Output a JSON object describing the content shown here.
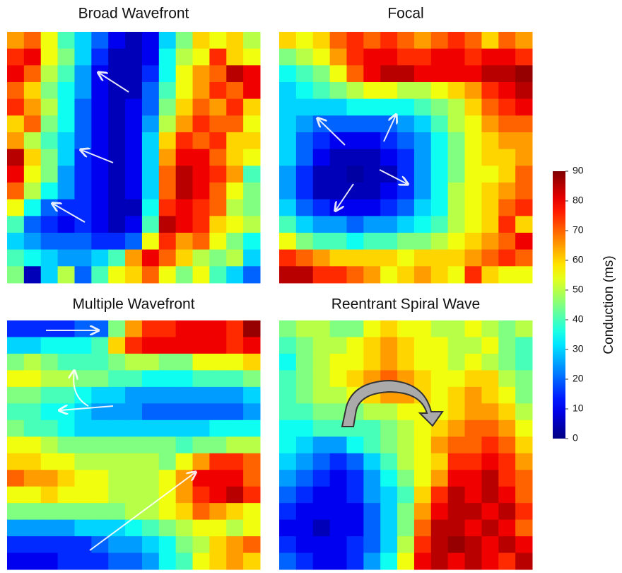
{
  "chart_data": [
    {
      "type": "heatmap",
      "title": "Broad Wavefront",
      "values": [
        [
          65,
          70,
          55,
          40,
          30,
          20,
          10,
          5,
          10,
          30,
          45,
          60,
          55,
          60,
          50
        ],
        [
          75,
          80,
          55,
          45,
          30,
          15,
          5,
          5,
          10,
          35,
          50,
          55,
          75,
          60,
          55
        ],
        [
          80,
          70,
          50,
          40,
          25,
          10,
          5,
          5,
          15,
          35,
          55,
          65,
          70,
          85,
          80
        ],
        [
          70,
          60,
          45,
          35,
          25,
          10,
          5,
          5,
          20,
          40,
          55,
          65,
          75,
          70,
          80
        ],
        [
          75,
          65,
          50,
          35,
          20,
          10,
          5,
          10,
          20,
          45,
          60,
          70,
          65,
          75,
          60
        ],
        [
          60,
          70,
          45,
          35,
          20,
          10,
          5,
          10,
          25,
          50,
          65,
          75,
          70,
          70,
          55
        ],
        [
          65,
          50,
          40,
          30,
          20,
          10,
          5,
          10,
          30,
          60,
          75,
          70,
          75,
          60,
          60
        ],
        [
          85,
          60,
          45,
          30,
          15,
          10,
          5,
          10,
          30,
          65,
          80,
          80,
          70,
          60,
          55
        ],
        [
          80,
          55,
          45,
          25,
          15,
          10,
          5,
          10,
          30,
          70,
          85,
          80,
          75,
          65,
          40
        ],
        [
          70,
          50,
          35,
          25,
          15,
          10,
          5,
          10,
          30,
          70,
          85,
          80,
          70,
          55,
          45
        ],
        [
          55,
          35,
          20,
          15,
          15,
          10,
          5,
          5,
          35,
          75,
          80,
          75,
          70,
          50,
          45
        ],
        [
          40,
          20,
          15,
          10,
          15,
          10,
          5,
          10,
          40,
          85,
          80,
          75,
          60,
          55,
          50
        ],
        [
          30,
          25,
          20,
          20,
          20,
          15,
          15,
          20,
          55,
          75,
          65,
          70,
          55,
          45,
          35
        ],
        [
          40,
          35,
          30,
          25,
          25,
          30,
          40,
          65,
          80,
          70,
          60,
          50,
          45,
          50,
          30
        ],
        [
          45,
          5,
          30,
          50,
          20,
          40,
          55,
          60,
          70,
          55,
          45,
          55,
          40,
          30,
          20
        ]
      ]
    },
    {
      "type": "heatmap",
      "title": "Focal",
      "values": [
        [
          60,
          55,
          60,
          70,
          75,
          70,
          75,
          70,
          65,
          70,
          75,
          70,
          60,
          70,
          65
        ],
        [
          45,
          50,
          55,
          65,
          75,
          80,
          80,
          75,
          75,
          80,
          80,
          75,
          80,
          80,
          75
        ],
        [
          35,
          40,
          45,
          55,
          70,
          80,
          85,
          85,
          80,
          80,
          80,
          80,
          85,
          85,
          88
        ],
        [
          30,
          35,
          40,
          45,
          50,
          55,
          55,
          50,
          50,
          55,
          60,
          65,
          75,
          80,
          85
        ],
        [
          30,
          30,
          30,
          30,
          35,
          35,
          35,
          35,
          40,
          45,
          50,
          60,
          70,
          75,
          80
        ],
        [
          30,
          25,
          20,
          20,
          20,
          20,
          20,
          25,
          30,
          40,
          50,
          55,
          65,
          70,
          70
        ],
        [
          30,
          20,
          15,
          10,
          10,
          10,
          15,
          20,
          25,
          35,
          45,
          55,
          60,
          65,
          65
        ],
        [
          30,
          20,
          10,
          5,
          5,
          5,
          10,
          15,
          25,
          35,
          45,
          55,
          60,
          60,
          65
        ],
        [
          25,
          15,
          5,
          5,
          3,
          5,
          5,
          15,
          25,
          35,
          45,
          55,
          55,
          60,
          70
        ],
        [
          25,
          15,
          5,
          5,
          5,
          5,
          10,
          15,
          25,
          35,
          50,
          55,
          60,
          65,
          70
        ],
        [
          30,
          20,
          15,
          10,
          10,
          10,
          15,
          20,
          30,
          35,
          50,
          55,
          60,
          70,
          75
        ],
        [
          40,
          30,
          25,
          25,
          20,
          25,
          25,
          30,
          35,
          40,
          50,
          55,
          60,
          75,
          60
        ],
        [
          55,
          45,
          40,
          40,
          35,
          40,
          40,
          45,
          45,
          50,
          55,
          60,
          65,
          70,
          80
        ],
        [
          75,
          70,
          65,
          60,
          60,
          60,
          60,
          55,
          60,
          60,
          60,
          65,
          70,
          75,
          70
        ],
        [
          85,
          85,
          75,
          75,
          70,
          65,
          55,
          60,
          65,
          60,
          55,
          75,
          60,
          55,
          55
        ]
      ]
    },
    {
      "type": "heatmap",
      "title": "Multiple  Wavefront",
      "values": [
        [
          15,
          15,
          15,
          15,
          20,
          20,
          45,
          65,
          75,
          75,
          80,
          80,
          80,
          75,
          88
        ],
        [
          30,
          30,
          35,
          35,
          35,
          40,
          60,
          75,
          80,
          80,
          80,
          80,
          80,
          75,
          80
        ],
        [
          45,
          50,
          45,
          40,
          40,
          40,
          45,
          50,
          50,
          45,
          45,
          55,
          55,
          55,
          60
        ],
        [
          55,
          55,
          50,
          50,
          45,
          45,
          40,
          40,
          35,
          35,
          35,
          40,
          40,
          40,
          45
        ],
        [
          45,
          45,
          40,
          40,
          35,
          30,
          30,
          25,
          25,
          25,
          25,
          25,
          25,
          25,
          30
        ],
        [
          40,
          40,
          35,
          35,
          30,
          25,
          25,
          25,
          20,
          20,
          20,
          20,
          20,
          20,
          25
        ],
        [
          45,
          40,
          40,
          35,
          30,
          30,
          30,
          30,
          30,
          30,
          30,
          30,
          35,
          35,
          35
        ],
        [
          55,
          55,
          50,
          45,
          45,
          45,
          45,
          45,
          45,
          45,
          40,
          45,
          45,
          50,
          50
        ],
        [
          60,
          60,
          55,
          55,
          50,
          50,
          50,
          50,
          50,
          45,
          55,
          65,
          75,
          75,
          70
        ],
        [
          70,
          65,
          65,
          60,
          55,
          55,
          50,
          50,
          50,
          55,
          65,
          80,
          80,
          80,
          70
        ],
        [
          55,
          55,
          60,
          55,
          55,
          55,
          50,
          50,
          50,
          55,
          65,
          75,
          80,
          85,
          75
        ],
        [
          45,
          45,
          45,
          45,
          45,
          45,
          45,
          50,
          50,
          55,
          60,
          70,
          65,
          60,
          55
        ],
        [
          25,
          25,
          25,
          25,
          30,
          30,
          30,
          35,
          40,
          45,
          50,
          55,
          55,
          50,
          55
        ],
        [
          15,
          15,
          15,
          15,
          15,
          20,
          25,
          25,
          30,
          35,
          45,
          50,
          60,
          65,
          70
        ],
        [
          10,
          10,
          10,
          15,
          15,
          15,
          20,
          20,
          25,
          35,
          40,
          55,
          60,
          65,
          60
        ]
      ]
    },
    {
      "type": "heatmap",
      "title": "Reentrant  Spiral Wave",
      "values": [
        [
          45,
          50,
          50,
          45,
          45,
          55,
          60,
          55,
          55,
          50,
          50,
          55,
          50,
          45,
          50
        ],
        [
          40,
          45,
          50,
          50,
          55,
          60,
          65,
          60,
          55,
          55,
          50,
          50,
          55,
          45,
          40
        ],
        [
          35,
          45,
          50,
          55,
          55,
          60,
          65,
          60,
          55,
          55,
          50,
          55,
          50,
          45,
          40
        ],
        [
          40,
          45,
          50,
          55,
          60,
          65,
          70,
          65,
          60,
          55,
          55,
          60,
          60,
          50,
          45
        ],
        [
          40,
          45,
          50,
          50,
          55,
          60,
          65,
          65,
          60,
          55,
          60,
          65,
          60,
          55,
          45
        ],
        [
          40,
          40,
          45,
          45,
          45,
          50,
          50,
          55,
          55,
          55,
          60,
          65,
          65,
          60,
          50
        ],
        [
          35,
          35,
          40,
          40,
          40,
          40,
          45,
          50,
          55,
          60,
          65,
          70,
          70,
          65,
          55
        ],
        [
          35,
          30,
          25,
          25,
          35,
          40,
          45,
          50,
          55,
          65,
          70,
          70,
          75,
          70,
          60
        ],
        [
          30,
          25,
          20,
          15,
          20,
          30,
          40,
          50,
          55,
          60,
          75,
          75,
          80,
          75,
          65
        ],
        [
          25,
          20,
          15,
          10,
          15,
          25,
          35,
          45,
          55,
          65,
          80,
          80,
          85,
          75,
          70
        ],
        [
          20,
          15,
          10,
          10,
          15,
          25,
          30,
          40,
          60,
          75,
          85,
          80,
          85,
          80,
          70
        ],
        [
          15,
          10,
          10,
          10,
          10,
          20,
          30,
          45,
          65,
          80,
          85,
          85,
          80,
          85,
          75
        ],
        [
          10,
          10,
          5,
          10,
          10,
          20,
          30,
          45,
          70,
          85,
          85,
          80,
          85,
          80,
          70
        ],
        [
          15,
          10,
          10,
          10,
          15,
          20,
          30,
          50,
          75,
          85,
          88,
          85,
          80,
          85,
          80
        ],
        [
          20,
          15,
          10,
          10,
          15,
          25,
          35,
          55,
          80,
          85,
          80,
          85,
          80,
          75,
          85
        ]
      ]
    }
  ],
  "colorbar": {
    "label": "Conduction (ms)",
    "lim": [
      0,
      90
    ],
    "ticks": [
      0,
      10,
      20,
      30,
      40,
      50,
      60,
      70,
      80,
      90
    ]
  }
}
